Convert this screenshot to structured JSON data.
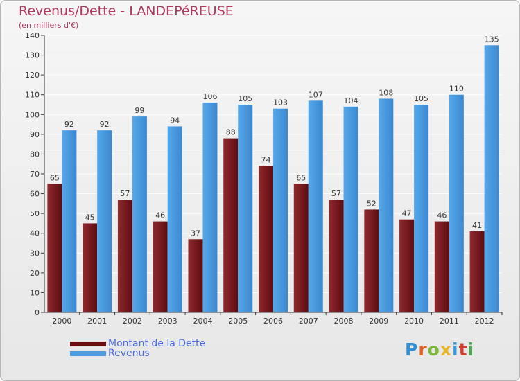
{
  "title": "Revenus/Dette - LANDEPéREUSE",
  "subtitle": "(en milliers d'€)",
  "logo": {
    "text": "Proxiti",
    "letter_colors": [
      "#2f8fd6",
      "#e0602a",
      "#7cb83a",
      "#e8b62c",
      "#3a9ad8",
      "#d23a2a",
      "#4aa850"
    ]
  },
  "legend": [
    {
      "label": "Montant de la Dette",
      "color": "#6b0e12"
    },
    {
      "label": "Revenus",
      "color": "#4a9be0"
    }
  ],
  "colors": {
    "dette": "#7a1a1f",
    "revenus": "#4a9be0",
    "axis": "#333333",
    "grid": "#ffffff"
  },
  "chart_data": {
    "type": "bar",
    "title": "Revenus/Dette - LANDEPéREUSE",
    "subtitle": "(en milliers d'€)",
    "categories": [
      "2000",
      "2001",
      "2002",
      "2003",
      "2004",
      "2005",
      "2006",
      "2007",
      "2008",
      "2009",
      "2010",
      "2011",
      "2012"
    ],
    "series": [
      {
        "name": "Montant de la Dette",
        "values": [
          65,
          45,
          57,
          46,
          37,
          88,
          74,
          65,
          57,
          52,
          47,
          46,
          41
        ]
      },
      {
        "name": "Revenus",
        "values": [
          92,
          92,
          99,
          94,
          106,
          105,
          103,
          107,
          104,
          108,
          105,
          110,
          135
        ]
      }
    ],
    "ylim": [
      0,
      140
    ],
    "yticks": [
      0,
      10,
      20,
      30,
      40,
      50,
      60,
      70,
      80,
      90,
      100,
      110,
      120,
      130,
      140
    ],
    "grid": true,
    "legend_position": "bottom-left",
    "data_labels": true
  }
}
